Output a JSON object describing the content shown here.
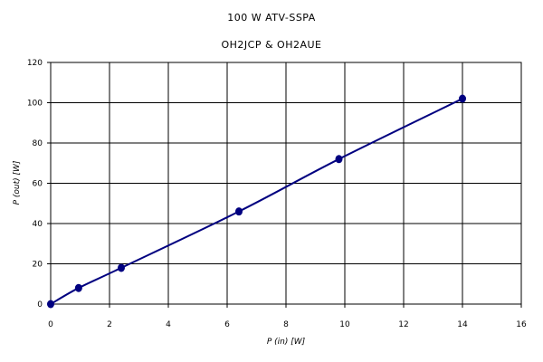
{
  "chart_data": {
    "type": "line",
    "title": "100 W ATV-SSPA",
    "subtitle": "OH2JCP & OH2AUE",
    "xlabel": "P (in) [W]",
    "ylabel": "P (out) [W]",
    "xlim": [
      0,
      16
    ],
    "ylim": [
      0,
      120
    ],
    "xticks": [
      0,
      2,
      4,
      6,
      8,
      10,
      12,
      14,
      16
    ],
    "yticks": [
      0,
      20,
      40,
      60,
      80,
      100,
      120
    ],
    "grid": true,
    "legend": "none",
    "series": [
      {
        "x": [
          0,
          0.95,
          2.4,
          6.4,
          9.8,
          14
        ],
        "y": [
          0,
          8,
          18,
          46,
          72,
          102
        ],
        "color": "#000080",
        "markers": true,
        "smooth": true
      }
    ]
  }
}
